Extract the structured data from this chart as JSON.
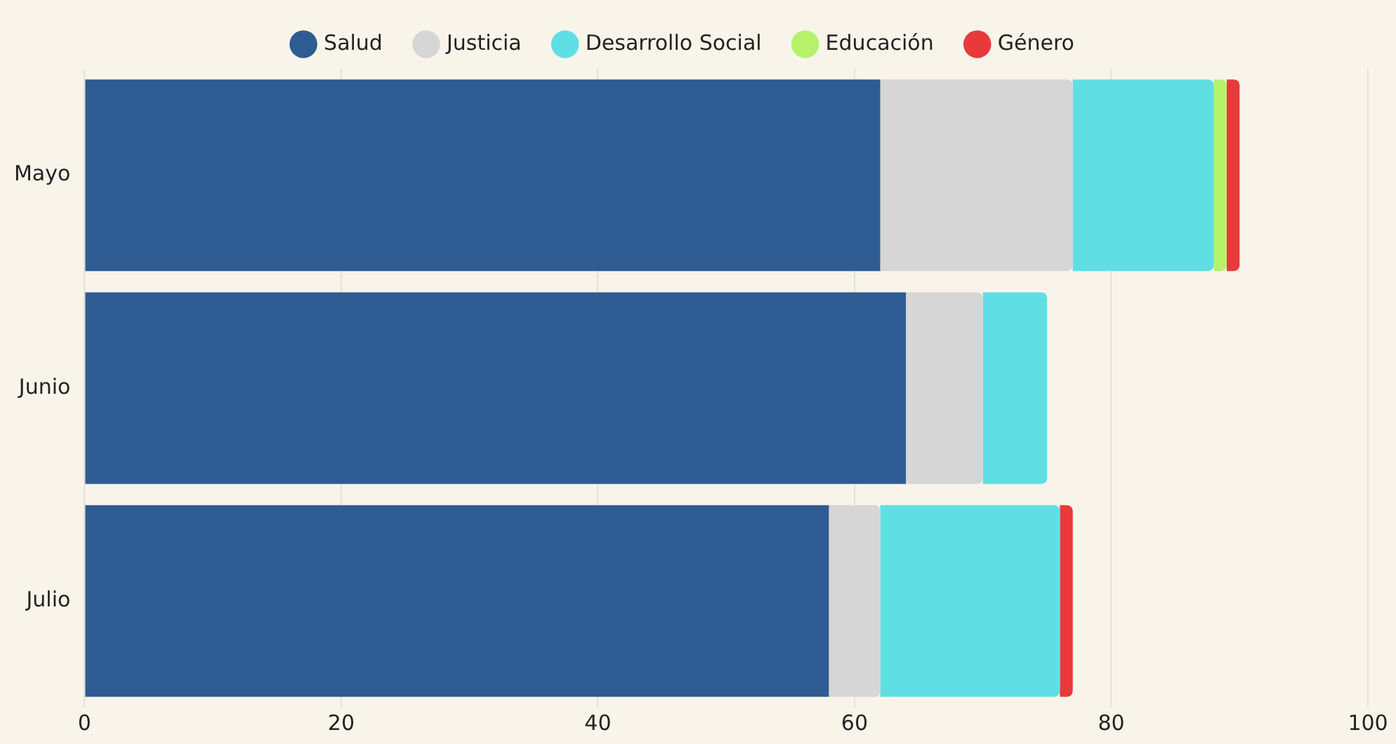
{
  "chart_data": {
    "type": "bar",
    "orientation": "horizontal",
    "stacked": true,
    "categories": [
      "Mayo",
      "Junio",
      "Julio"
    ],
    "series": [
      {
        "name": "Salud",
        "color": "#2e5c92",
        "values": [
          62,
          64,
          58
        ]
      },
      {
        "name": "Justicia",
        "color": "#d6d6d6",
        "values": [
          15,
          6,
          4
        ]
      },
      {
        "name": "Desarrollo Social",
        "color": "#5fdfe4",
        "values": [
          11,
          5,
          14
        ]
      },
      {
        "name": "Educación",
        "color": "#b5f26a",
        "values": [
          1,
          0,
          0
        ]
      },
      {
        "name": "Género",
        "color": "#e83a3a",
        "values": [
          1,
          0,
          1
        ]
      }
    ],
    "xlim": [
      0,
      100
    ],
    "xticks": [
      0,
      20,
      40,
      60,
      80,
      100
    ],
    "grid": "x",
    "legend": "top"
  }
}
